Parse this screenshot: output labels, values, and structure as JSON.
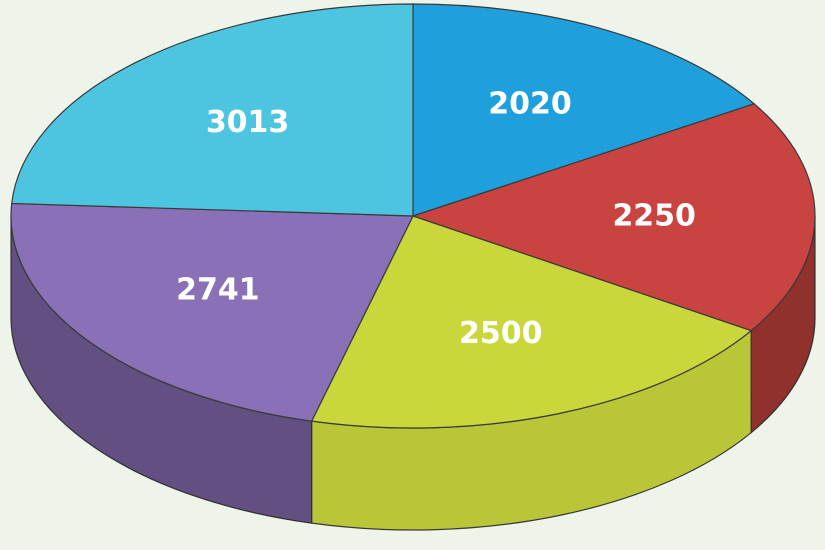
{
  "chart_data": {
    "type": "pie",
    "values": [
      2020,
      2250,
      2500,
      2741,
      3013
    ],
    "colors": [
      "#1fa0dc",
      "#c94441",
      "#c9d73c",
      "#8a70b6",
      "#4dc4e0"
    ]
  }
}
